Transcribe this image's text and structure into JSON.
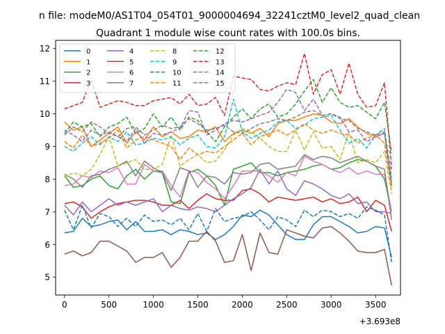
{
  "chart_data": {
    "type": "line",
    "suptitle": "n file: modeM0/AS1T04_054T01_9000004694_32241cztM0_level2_quad_clean",
    "title": "Quadrant 1 module wise count rates with 100.0s bins.",
    "xlabel": "",
    "ylabel": "",
    "x_offset_label": "+3.693e8",
    "xlim": [
      -100,
      3780
    ],
    "ylim": [
      4.45,
      12.25
    ],
    "xticks": [
      0,
      500,
      1000,
      1500,
      2000,
      2500,
      3000,
      3500
    ],
    "xtick_labels": [
      "0",
      "500",
      "1000",
      "1500",
      "2000",
      "2500",
      "3000",
      "3500"
    ],
    "yticks": [
      5,
      6,
      7,
      8,
      9,
      10,
      11,
      12
    ],
    "ytick_labels": [
      "5",
      "6",
      "7",
      "8",
      "9",
      "10",
      "11",
      "12"
    ],
    "grid": false,
    "legend_position": "upper-left",
    "x": [
      0,
      100,
      200,
      300,
      400,
      500,
      600,
      700,
      800,
      900,
      1000,
      1100,
      1200,
      1300,
      1400,
      1500,
      1600,
      1700,
      1800,
      1900,
      2000,
      2100,
      2200,
      2300,
      2400,
      2500,
      2600,
      2700,
      2800,
      2900,
      3000,
      3100,
      3200,
      3300,
      3400,
      3500,
      3600,
      3680
    ],
    "series": [
      {
        "name": "0",
        "color": "#1f77b4",
        "dash": "solid",
        "values": [
          6.35,
          6.4,
          6.8,
          6.55,
          6.6,
          6.7,
          6.75,
          6.45,
          6.7,
          6.4,
          6.4,
          6.45,
          6.3,
          6.45,
          6.4,
          6.3,
          6.35,
          6.15,
          6.3,
          6.55,
          6.9,
          6.85,
          7.05,
          6.9,
          6.6,
          6.3,
          6.15,
          6.15,
          6.6,
          6.85,
          6.85,
          6.7,
          6.55,
          6.35,
          6.4,
          6.55,
          6.5,
          5.6
        ]
      },
      {
        "name": "1",
        "color": "#ff7f0e",
        "dash": "solid",
        "values": [
          9.75,
          9.5,
          9.6,
          9.0,
          9.2,
          9.4,
          9.6,
          9.1,
          9.45,
          9.2,
          9.6,
          9.3,
          9.45,
          9.25,
          9.3,
          9.5,
          9.45,
          9.6,
          9.15,
          9.4,
          9.5,
          9.4,
          9.55,
          9.3,
          9.7,
          9.8,
          9.8,
          9.9,
          10.0,
          9.95,
          9.75,
          9.7,
          9.85,
          9.6,
          9.4,
          9.3,
          9.4,
          7.85
        ]
      },
      {
        "name": "2",
        "color": "#2ca02c",
        "dash": "solid",
        "values": [
          8.1,
          7.75,
          7.8,
          8.0,
          8.1,
          7.8,
          7.7,
          8.1,
          8.3,
          8.0,
          8.25,
          8.2,
          7.3,
          7.25,
          8.2,
          8.3,
          8.1,
          7.8,
          7.2,
          8.3,
          8.4,
          8.5,
          8.2,
          8.2,
          8.1,
          8.2,
          8.25,
          8.3,
          8.4,
          8.45,
          8.3,
          8.35,
          8.5,
          8.6,
          8.55,
          8.4,
          8.0,
          7.0
        ]
      },
      {
        "name": "3",
        "color": "#d62728",
        "dash": "solid",
        "values": [
          7.25,
          7.3,
          7.15,
          6.8,
          7.0,
          7.15,
          7.25,
          7.3,
          7.35,
          7.35,
          7.3,
          7.2,
          7.2,
          7.35,
          7.1,
          7.35,
          7.55,
          7.4,
          7.35,
          7.35,
          7.65,
          7.7,
          7.55,
          7.3,
          7.45,
          7.4,
          7.35,
          7.4,
          7.45,
          7.3,
          7.4,
          7.25,
          7.3,
          7.45,
          7.0,
          7.35,
          7.2,
          6.4
        ]
      },
      {
        "name": "4",
        "color": "#9467bd",
        "dash": "solid",
        "values": [
          7.2,
          6.9,
          7.3,
          7.0,
          7.2,
          7.4,
          7.2,
          7.3,
          7.2,
          7.3,
          7.4,
          7.0,
          7.2,
          7.1,
          7.05,
          7.15,
          7.1,
          7.0,
          7.2,
          7.4,
          7.55,
          7.75,
          8.3,
          7.85,
          8.25,
          7.7,
          7.5,
          7.95,
          7.85,
          7.7,
          7.5,
          7.4,
          7.55,
          7.25,
          7.3,
          7.0,
          7.0,
          6.95
        ]
      },
      {
        "name": "5",
        "color": "#8c564b",
        "dash": "solid",
        "values": [
          5.7,
          5.8,
          5.65,
          5.75,
          6.1,
          6.1,
          5.95,
          5.8,
          5.45,
          5.6,
          5.6,
          5.75,
          5.3,
          5.6,
          6.1,
          6.1,
          6.4,
          6.1,
          5.45,
          5.5,
          6.3,
          5.2,
          6.35,
          5.75,
          5.7,
          6.45,
          6.35,
          6.25,
          6.2,
          6.5,
          6.55,
          6.35,
          6.1,
          5.8,
          5.75,
          5.75,
          5.85,
          4.75
        ]
      },
      {
        "name": "6",
        "color": "#e377c2",
        "dash": "solid",
        "values": [
          7.8,
          7.85,
          8.1,
          8.05,
          8.25,
          8.2,
          8.35,
          7.85,
          7.85,
          8.45,
          8.25,
          8.25,
          7.8,
          7.45,
          8.25,
          8.2,
          7.9,
          7.7,
          7.4,
          7.8,
          8.25,
          8.25,
          8.25,
          8.1,
          7.9,
          8.2,
          8.1,
          8.7,
          8.55,
          8.45,
          8.3,
          8.2,
          8.35,
          8.15,
          8.25,
          8.15,
          8.15,
          7.0
        ]
      },
      {
        "name": "7",
        "color": "#7f7f7f",
        "dash": "solid",
        "values": [
          8.15,
          8.0,
          7.75,
          8.1,
          8.15,
          8.3,
          8.4,
          8.55,
          8.1,
          8.55,
          8.35,
          8.2,
          7.65,
          8.35,
          8.25,
          7.75,
          8.1,
          8.05,
          7.85,
          8.2,
          8.15,
          8.2,
          8.45,
          8.5,
          8.3,
          8.35,
          8.4,
          8.75,
          8.6,
          8.7,
          8.65,
          8.5,
          8.6,
          8.7,
          8.55,
          8.4,
          8.3,
          6.75
        ]
      },
      {
        "name": "8",
        "color": "#bcbd22",
        "dash": "dashed",
        "values": [
          8.05,
          8.2,
          8.1,
          8.3,
          8.75,
          9.3,
          8.4,
          8.5,
          8.6,
          8.3,
          8.3,
          8.45,
          9.35,
          8.4,
          8.6,
          8.75,
          8.5,
          8.55,
          8.9,
          9.35,
          9.55,
          9.45,
          9.25,
          9.0,
          8.85,
          8.85,
          9.5,
          8.9,
          9.45,
          8.95,
          9.0,
          8.6,
          9.45,
          8.5,
          8.6,
          8.5,
          8.85,
          7.55
        ]
      },
      {
        "name": "9",
        "color": "#17becf",
        "dash": "dashed",
        "values": [
          9.0,
          8.85,
          9.1,
          9.3,
          9.05,
          9.3,
          9.15,
          9.45,
          9.05,
          9.1,
          9.25,
          9.2,
          9.3,
          9.05,
          9.25,
          9.35,
          9.0,
          8.95,
          9.3,
          10.45,
          9.45,
          9.25,
          9.4,
          9.5,
          9.75,
          9.8,
          9.55,
          9.65,
          9.85,
          9.9,
          9.95,
          9.5,
          9.1,
          9.25,
          8.95,
          9.35,
          9.55,
          8.05
        ]
      },
      {
        "name": "10",
        "color": "#1f77b4",
        "dash": "dashed",
        "values": [
          7.05,
          6.45,
          7.2,
          6.5,
          6.95,
          6.85,
          6.55,
          6.8,
          6.55,
          6.9,
          6.7,
          6.75,
          6.6,
          6.8,
          6.45,
          6.95,
          6.4,
          7.1,
          6.7,
          6.8,
          6.85,
          7.0,
          6.75,
          6.45,
          6.85,
          6.75,
          6.55,
          7.05,
          6.85,
          7.05,
          7.0,
          6.85,
          6.95,
          6.8,
          7.15,
          7.05,
          6.9,
          5.45
        ]
      },
      {
        "name": "11",
        "color": "#ff7f0e",
        "dash": "dashed",
        "values": [
          9.15,
          8.95,
          9.35,
          9.0,
          9.1,
          9.25,
          9.5,
          8.95,
          9.2,
          9.3,
          9.2,
          9.1,
          9.0,
          8.6,
          8.95,
          8.75,
          8.85,
          8.8,
          9.0,
          9.2,
          9.4,
          9.05,
          9.3,
          9.4,
          9.5,
          9.35,
          9.5,
          9.7,
          9.5,
          9.4,
          9.5,
          9.4,
          9.35,
          9.1,
          9.25,
          9.35,
          9.1,
          7.7
        ]
      },
      {
        "name": "12",
        "color": "#2ca02c",
        "dash": "dashed",
        "values": [
          9.4,
          9.75,
          9.6,
          9.7,
          9.3,
          9.6,
          9.7,
          9.9,
          9.4,
          9.55,
          10.0,
          9.6,
          9.9,
          9.5,
          9.9,
          9.8,
          9.45,
          9.15,
          9.6,
          9.9,
          10.15,
          9.85,
          10.15,
          10.3,
          9.9,
          10.0,
          10.3,
          10.7,
          11.05,
          10.35,
          10.8,
          10.35,
          10.2,
          10.25,
          10.05,
          9.85,
          10.35,
          8.8
        ]
      },
      {
        "name": "13",
        "color": "#d62728",
        "dash": "dashed",
        "values": [
          10.15,
          10.25,
          10.35,
          11.05,
          10.2,
          10.3,
          10.4,
          10.35,
          10.25,
          10.25,
          10.4,
          10.45,
          10.5,
          10.3,
          10.6,
          10.25,
          10.3,
          10.5,
          9.95,
          11.15,
          11.1,
          11.05,
          10.75,
          10.7,
          10.85,
          10.95,
          10.9,
          11.85,
          10.6,
          11.2,
          11.35,
          10.6,
          11.55,
          10.6,
          10.2,
          10.25,
          10.95,
          8.3
        ]
      },
      {
        "name": "14",
        "color": "#9467bd",
        "dash": "dashed",
        "values": [
          9.5,
          9.35,
          9.15,
          9.5,
          9.35,
          9.45,
          9.3,
          9.15,
          9.55,
          9.1,
          9.4,
          9.35,
          9.45,
          9.55,
          10.1,
          10.05,
          9.35,
          9.5,
          9.7,
          9.8,
          9.75,
          9.85,
          9.95,
          10.05,
          10.35,
          10.75,
          10.65,
          10.1,
          10.45,
          9.95,
          10.0,
          9.9,
          9.45,
          9.5,
          9.15,
          9.3,
          9.4,
          7.9
        ]
      },
      {
        "name": "15",
        "color": "#7f7f7f",
        "dash": "dashed",
        "values": [
          9.35,
          9.6,
          9.45,
          9.75,
          9.6,
          9.4,
          9.3,
          9.55,
          9.6,
          9.35,
          9.5,
          9.65,
          9.55,
          9.6,
          9.85,
          9.7,
          9.5,
          9.55,
          9.65,
          9.45,
          9.4,
          9.55,
          9.7,
          9.75,
          9.85,
          9.8,
          9.9,
          10.05,
          10.1,
          9.95,
          10.0,
          9.85,
          9.8,
          9.55,
          9.45,
          9.35,
          9.45,
          7.8
        ]
      }
    ]
  }
}
